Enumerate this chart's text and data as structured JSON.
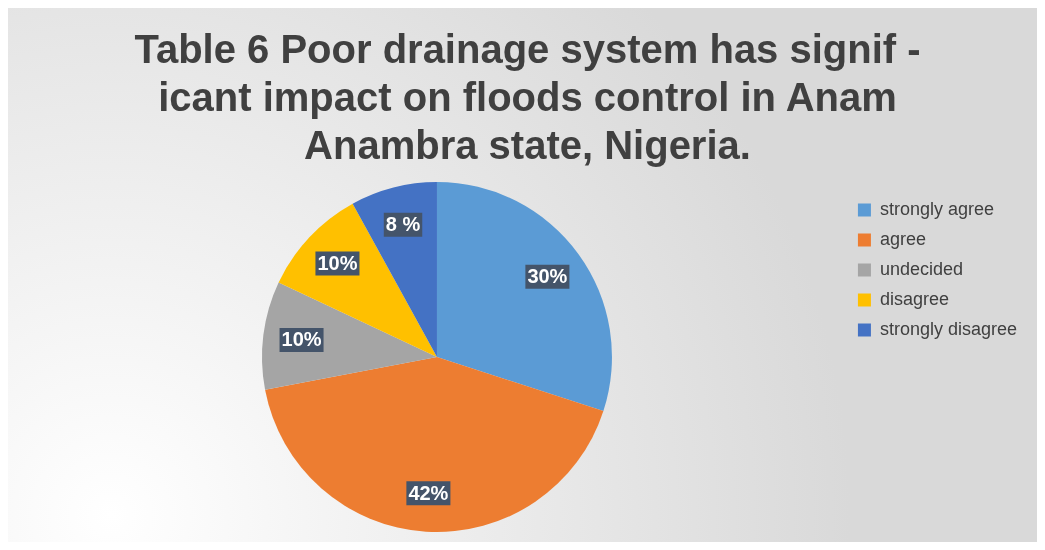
{
  "chart_data": {
    "type": "pie",
    "title": "Table 6 Poor drainage system has signif -\nicant impact on floods control in Anam\nAnambra state, Nigeria.",
    "categories": [
      "strongly agree",
      "agree",
      "undecided",
      "disagree",
      "strongly disagree"
    ],
    "values": [
      30,
      42,
      10,
      10,
      8
    ],
    "colors": [
      "#5b9bd5",
      "#ed7d31",
      "#a5a5a5",
      "#ffc000",
      "#4472c4"
    ],
    "value_labels": [
      "30%",
      "42%",
      "10%",
      "10%",
      "8 %"
    ],
    "legend": "right"
  }
}
